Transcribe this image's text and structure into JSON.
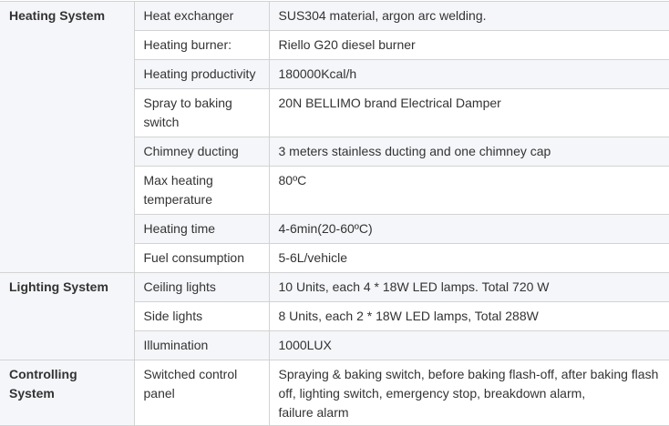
{
  "groups": [
    {
      "title": "Heating System",
      "rows": [
        {
          "label": "Heat exchanger",
          "value": "SUS304 material, argon arc welding."
        },
        {
          "label": "Heating burner:",
          "value": "Riello G20 diesel burner"
        },
        {
          "label": "Heating productivity",
          "value": "180000Kcal/h"
        },
        {
          "label": "Spray to baking switch",
          "value": "20N BELLIMO brand Electrical Damper"
        },
        {
          "label": "Chimney ducting",
          "value": "3 meters stainless ducting and one chimney cap"
        },
        {
          "label": "Max heating temperature",
          "value": "80ºC"
        },
        {
          "label": "Heating time",
          "value": "4-6min(20-60ºC)"
        },
        {
          "label": "Fuel consumption",
          "value": "5-6L/vehicle"
        }
      ]
    },
    {
      "title": "Lighting System",
      "rows": [
        {
          "label": "Ceiling lights",
          "value": "10 Units, each 4 * 18W LED lamps. Total 720 W"
        },
        {
          "label": "Side lights",
          "value": "8 Units, each 2 * 18W LED lamps, Total 288W"
        },
        {
          "label": "Illumination",
          "value": "1000LUX"
        }
      ]
    },
    {
      "title": "Controlling System",
      "rows": [
        {
          "label": "Switched control panel",
          "value": "Spraying & baking switch, before baking flash-off, after baking flash off, lighting switch, emergency stop, breakdown alarm,",
          "value2": "failure alarm"
        }
      ]
    }
  ]
}
